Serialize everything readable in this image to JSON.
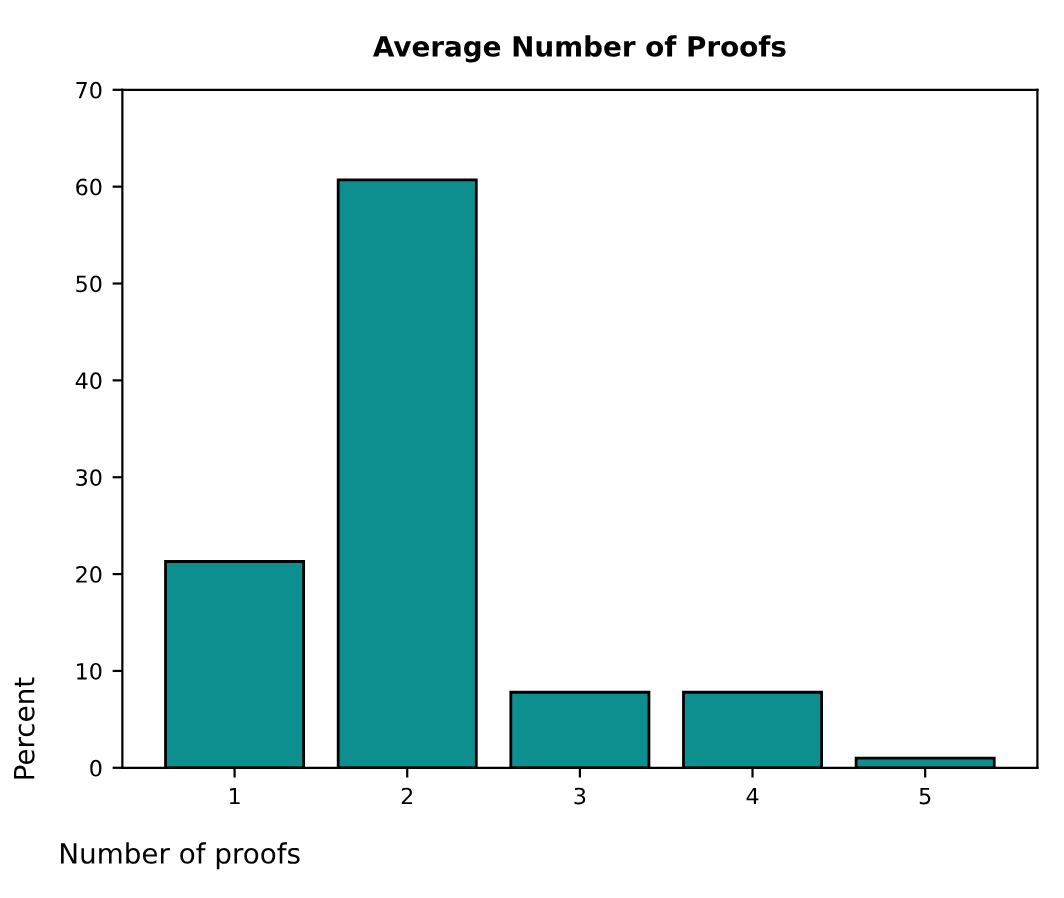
{
  "chart_data": {
    "type": "bar",
    "title": "Average Number of Proofs",
    "xlabel": "Number of proofs",
    "ylabel": "Percent",
    "categories": [
      "1",
      "2",
      "3",
      "4",
      "5"
    ],
    "values": [
      21.3,
      60.7,
      7.8,
      7.8,
      1.0
    ],
    "color": "#0e8f8f",
    "ylim": [
      0,
      70
    ],
    "yticks": [
      0,
      10,
      20,
      30,
      40,
      50,
      60,
      70
    ],
    "grid": false,
    "legend": false
  }
}
